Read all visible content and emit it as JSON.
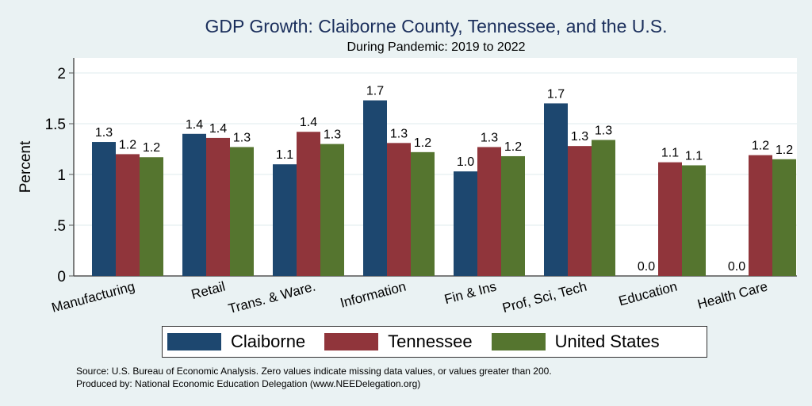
{
  "chart_data": {
    "type": "bar",
    "title": "GDP Growth: Claiborne County, Tennessee, and the U.S.",
    "subtitle": "During Pandemic: 2019 to 2022",
    "xlabel": "",
    "ylabel": "Percent",
    "ylim": [
      0,
      2.15
    ],
    "yticks": [
      0,
      0.5,
      1,
      1.5,
      2
    ],
    "ytick_labels": [
      "0",
      ".5",
      "1",
      "1.5",
      "2"
    ],
    "grid": true,
    "legend_position": "bottom",
    "categories": [
      "Manufacturing",
      "Retail",
      "Trans. & Ware.",
      "Information",
      "Fin & Ins",
      "Prof, Sci, Tech",
      "Education",
      "Health Care"
    ],
    "series": [
      {
        "name": "Claiborne",
        "color": "#1d476f",
        "values": [
          1.32,
          1.4,
          1.1,
          1.73,
          1.03,
          1.7,
          0,
          0
        ],
        "labels": [
          "1.3",
          "1.4",
          "1.1",
          "1.7",
          "1.0",
          "1.7",
          "0.0",
          "0.0"
        ]
      },
      {
        "name": "Tennessee",
        "color": "#90353b",
        "values": [
          1.2,
          1.36,
          1.42,
          1.31,
          1.27,
          1.28,
          1.12,
          1.19
        ],
        "labels": [
          "1.2",
          "1.4",
          "1.4",
          "1.3",
          "1.3",
          "1.3",
          "1.1",
          "1.2"
        ]
      },
      {
        "name": "United States",
        "color": "#55752f",
        "values": [
          1.17,
          1.27,
          1.3,
          1.22,
          1.18,
          1.34,
          1.09,
          1.15
        ],
        "labels": [
          "1.2",
          "1.3",
          "1.3",
          "1.2",
          "1.2",
          "1.3",
          "1.1",
          "1.2"
        ]
      }
    ],
    "notes": [
      "Source: U.S. Bureau of Economic Analysis. Zero values indicate missing data values, or values greater than 200.",
      "Produced by: National Economic Education Delegation (www.NEEDelegation.org)"
    ]
  }
}
